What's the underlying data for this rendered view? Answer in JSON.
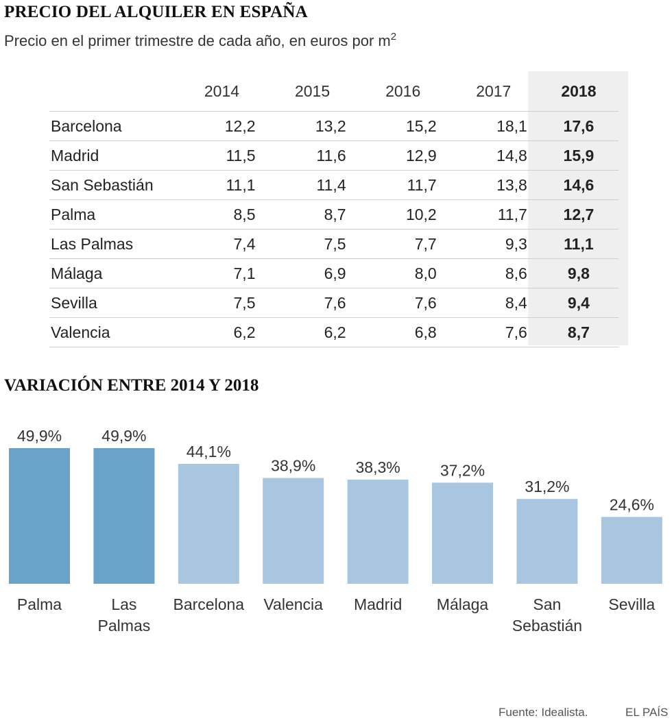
{
  "title": "PRECIO DEL ALQUILER EN ESPAÑA",
  "subtitle": "Precio en el primer trimestre de cada año, en euros por m",
  "subtitle_sup": "2",
  "table": {
    "years": [
      "2014",
      "2015",
      "2016",
      "2017",
      "2018"
    ],
    "rows": [
      {
        "city": "Barcelona",
        "values": [
          "12,2",
          "13,2",
          "15,2",
          "18,1",
          "17,6"
        ]
      },
      {
        "city": "Madrid",
        "values": [
          "11,5",
          "11,6",
          "12,9",
          "14,8",
          "15,9"
        ]
      },
      {
        "city": "San Sebastián",
        "values": [
          "11,1",
          "11,4",
          "11,7",
          "13,8",
          "14,6"
        ]
      },
      {
        "city": "Palma",
        "values": [
          "8,5",
          "8,7",
          "10,2",
          "11,7",
          "12,7"
        ]
      },
      {
        "city": "Las Palmas",
        "values": [
          "7,4",
          "7,5",
          "7,7",
          "9,3",
          "11,1"
        ]
      },
      {
        "city": "Málaga",
        "values": [
          "7,1",
          "6,9",
          "8,0",
          "8,6",
          "9,8"
        ]
      },
      {
        "city": "Sevilla",
        "values": [
          "7,5",
          "7,6",
          "7,6",
          "8,4",
          "9,4"
        ]
      },
      {
        "city": "Valencia",
        "values": [
          "6,2",
          "6,2",
          "6,8",
          "7,6",
          "8,7"
        ]
      }
    ],
    "highlight_color": "#efefef"
  },
  "section2_title": "VARIACIÓN ENTRE 2014 Y 2018",
  "chart_data": {
    "type": "bar",
    "title": "VARIACIÓN ENTRE 2014 Y 2018",
    "categories": [
      [
        "Palma"
      ],
      [
        "Las",
        "Palmas"
      ],
      [
        "Barcelona"
      ],
      [
        "Valencia"
      ],
      [
        "Madrid"
      ],
      [
        "Málaga"
      ],
      [
        "San",
        "Sebastián"
      ],
      [
        "Sevilla"
      ]
    ],
    "values": [
      49.9,
      49.9,
      44.1,
      38.9,
      38.3,
      37.2,
      31.2,
      24.6
    ],
    "labels": [
      "49,9%",
      "49,9%",
      "44,1%",
      "38,9%",
      "38,3%",
      "37,2%",
      "31,2%",
      "24,6%"
    ],
    "highlight": [
      true,
      true,
      false,
      false,
      false,
      false,
      false,
      false
    ],
    "colors": {
      "highlight": "#6aa3ca",
      "normal": "#a9c6e1"
    },
    "ylim": [
      0,
      49.9
    ],
    "grid": false
  },
  "source": "Fuente: Idealista.",
  "brand": "EL PAÍS"
}
